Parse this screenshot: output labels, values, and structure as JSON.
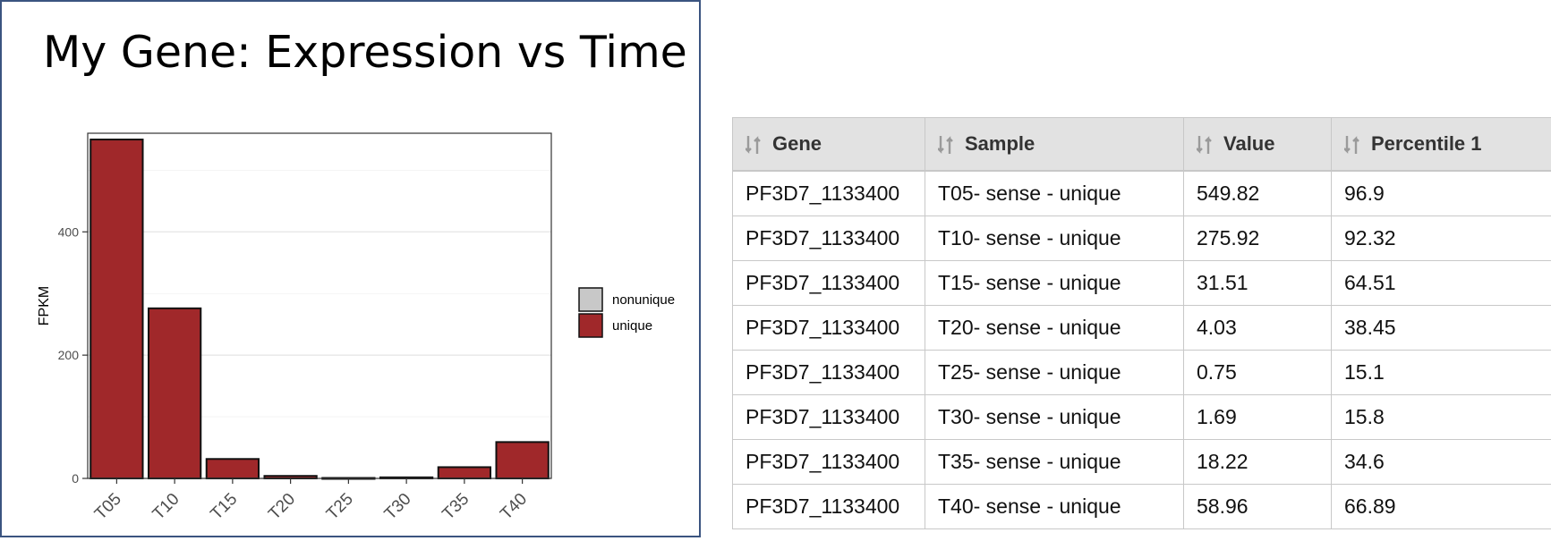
{
  "page_title": "My Gene: Expression vs Time",
  "colors": {
    "unique": "#a0282a",
    "nonunique": "#c8c8c8",
    "frame": "#3b5480"
  },
  "chart_data": {
    "type": "bar",
    "title": "My Gene: Expression vs Time",
    "xlabel": "",
    "ylabel": "FPKM",
    "categories": [
      "T05",
      "T10",
      "T15",
      "T20",
      "T25",
      "T30",
      "T35",
      "T40"
    ],
    "series": [
      {
        "name": "unique",
        "values": [
          549.82,
          275.92,
          31.51,
          4.03,
          0.75,
          1.69,
          18.22,
          58.96
        ]
      },
      {
        "name": "nonunique",
        "values": [
          0,
          0,
          0,
          0,
          0,
          0,
          0,
          0
        ]
      }
    ],
    "yticks": [
      0,
      200,
      400
    ],
    "ylim": [
      0,
      560
    ],
    "grid": true,
    "legend": {
      "placement": "right",
      "entries": [
        "nonunique",
        "unique"
      ]
    }
  },
  "table": {
    "columns": [
      "Gene",
      "Sample",
      "Value",
      "Percentile 1"
    ],
    "rows": [
      [
        "PF3D7_1133400",
        "T05- sense - unique",
        "549.82",
        "96.9"
      ],
      [
        "PF3D7_1133400",
        "T10- sense - unique",
        "275.92",
        "92.32"
      ],
      [
        "PF3D7_1133400",
        "T15- sense - unique",
        "31.51",
        "64.51"
      ],
      [
        "PF3D7_1133400",
        "T20- sense - unique",
        "4.03",
        "38.45"
      ],
      [
        "PF3D7_1133400",
        "T25- sense - unique",
        "0.75",
        "15.1"
      ],
      [
        "PF3D7_1133400",
        "T30- sense - unique",
        "1.69",
        "15.8"
      ],
      [
        "PF3D7_1133400",
        "T35- sense - unique",
        "18.22",
        "34.6"
      ],
      [
        "PF3D7_1133400",
        "T40- sense - unique",
        "58.96",
        "66.89"
      ]
    ]
  }
}
